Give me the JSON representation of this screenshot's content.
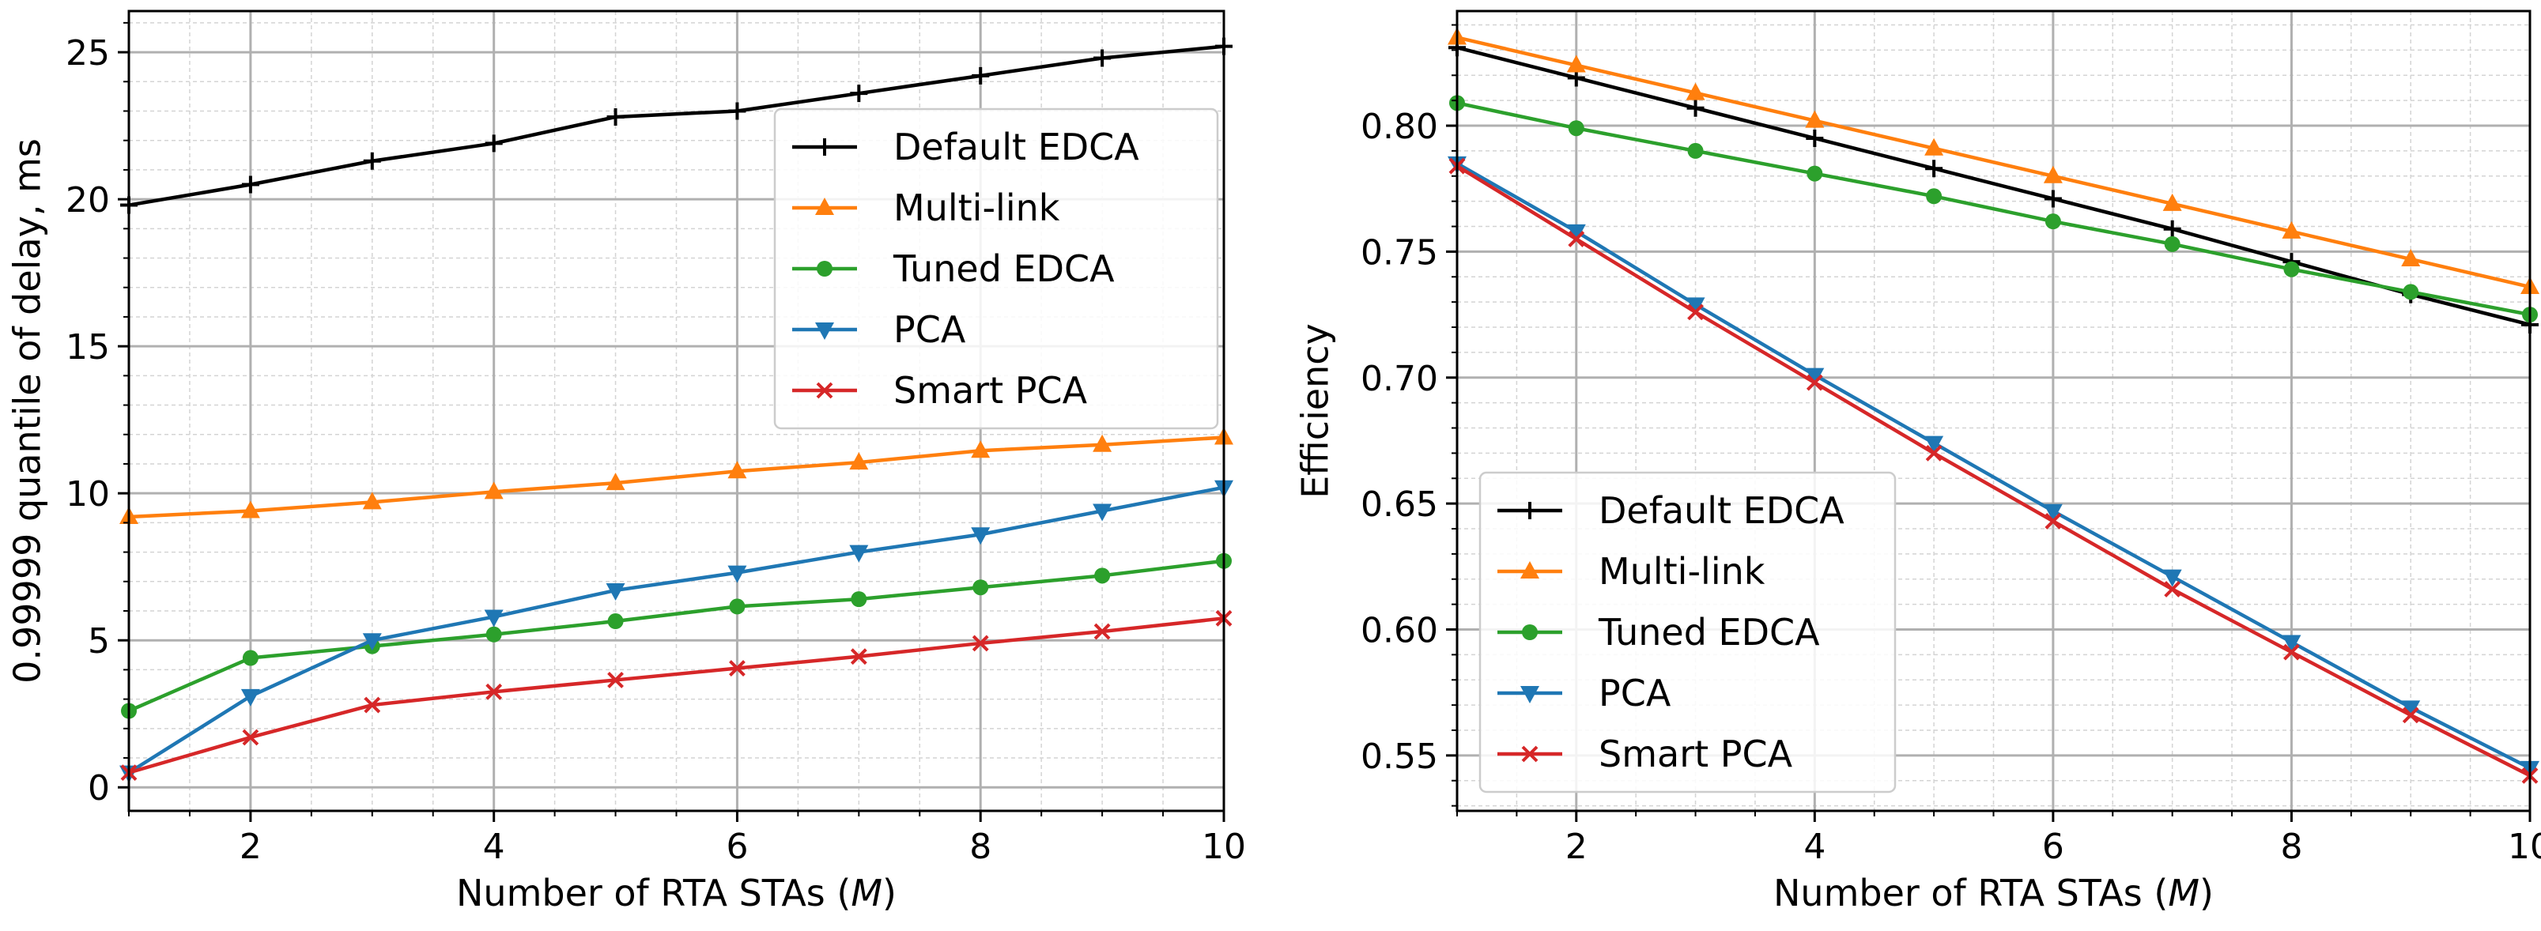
{
  "chart_data": [
    {
      "type": "line",
      "xlabel": "Number of RTA STAs (",
      "xlabel_var": "M",
      "xlabel_end": ")",
      "ylabel": "0.99999 quantile of delay, ms",
      "xlim": [
        1,
        10
      ],
      "ylim": [
        -0.8,
        26.4
      ],
      "xticks": [
        2,
        4,
        6,
        8,
        10
      ],
      "xtick_labels": [
        "2",
        "4",
        "6",
        "8",
        "10"
      ],
      "yticks": [
        0,
        5,
        10,
        15,
        20,
        25
      ],
      "ytick_labels": [
        "0",
        "5",
        "10",
        "15",
        "20",
        "25"
      ],
      "grid": true,
      "legend_position": "upper-right",
      "x": [
        1,
        2,
        3,
        4,
        5,
        6,
        7,
        8,
        9,
        10
      ],
      "series": [
        {
          "name": "Default EDCA",
          "color": "#000000",
          "marker": "plus",
          "values": [
            19.8,
            20.5,
            21.3,
            21.9,
            22.8,
            23.0,
            23.6,
            24.2,
            24.8,
            25.2
          ]
        },
        {
          "name": "Multi-link",
          "color": "#ff7f0e",
          "marker": "triangle-up",
          "values": [
            9.2,
            9.4,
            9.7,
            10.05,
            10.35,
            10.75,
            11.05,
            11.45,
            11.65,
            11.9
          ]
        },
        {
          "name": "Tuned EDCA",
          "color": "#2ca02c",
          "marker": "circle",
          "values": [
            2.6,
            4.4,
            4.8,
            5.2,
            5.65,
            6.15,
            6.4,
            6.8,
            7.2,
            7.7
          ]
        },
        {
          "name": "PCA",
          "color": "#1f77b4",
          "marker": "triangle-down",
          "values": [
            0.5,
            3.1,
            5.0,
            5.8,
            6.7,
            7.3,
            8.0,
            8.6,
            9.4,
            10.2
          ]
        },
        {
          "name": "Smart PCA",
          "color": "#d62728",
          "marker": "x",
          "values": [
            0.5,
            1.7,
            2.8,
            3.25,
            3.65,
            4.05,
            4.45,
            4.9,
            5.3,
            5.75
          ]
        }
      ]
    },
    {
      "type": "line",
      "xlabel": "Number of RTA STAs (",
      "xlabel_var": "M",
      "xlabel_end": ")",
      "ylabel": "Efficiency",
      "xlim": [
        1,
        10
      ],
      "ylim": [
        0.528,
        0.8455
      ],
      "xticks": [
        2,
        4,
        6,
        8,
        10
      ],
      "xtick_labels": [
        "2",
        "4",
        "6",
        "8",
        "10"
      ],
      "yticks": [
        0.55,
        0.6,
        0.65,
        0.7,
        0.75,
        0.8
      ],
      "ytick_labels": [
        "0.55",
        "0.60",
        "0.65",
        "0.70",
        "0.75",
        "0.80"
      ],
      "grid": true,
      "legend_position": "lower-left",
      "x": [
        1,
        2,
        3,
        4,
        5,
        6,
        7,
        8,
        9,
        10
      ],
      "series": [
        {
          "name": "Default EDCA",
          "color": "#000000",
          "marker": "plus",
          "values": [
            0.831,
            0.819,
            0.807,
            0.795,
            0.783,
            0.771,
            0.759,
            0.746,
            0.733,
            0.721
          ]
        },
        {
          "name": "Multi-link",
          "color": "#ff7f0e",
          "marker": "triangle-up",
          "values": [
            0.835,
            0.824,
            0.813,
            0.802,
            0.791,
            0.78,
            0.769,
            0.758,
            0.747,
            0.736
          ]
        },
        {
          "name": "Tuned EDCA",
          "color": "#2ca02c",
          "marker": "circle",
          "values": [
            0.809,
            0.799,
            0.79,
            0.781,
            0.772,
            0.762,
            0.753,
            0.743,
            0.734,
            0.725
          ]
        },
        {
          "name": "PCA",
          "color": "#1f77b4",
          "marker": "triangle-down",
          "values": [
            0.785,
            0.758,
            0.729,
            0.701,
            0.674,
            0.647,
            0.621,
            0.595,
            0.569,
            0.545
          ]
        },
        {
          "name": "Smart PCA",
          "color": "#d62728",
          "marker": "x",
          "values": [
            0.784,
            0.755,
            0.726,
            0.698,
            0.67,
            0.643,
            0.616,
            0.591,
            0.566,
            0.542
          ]
        }
      ]
    }
  ]
}
